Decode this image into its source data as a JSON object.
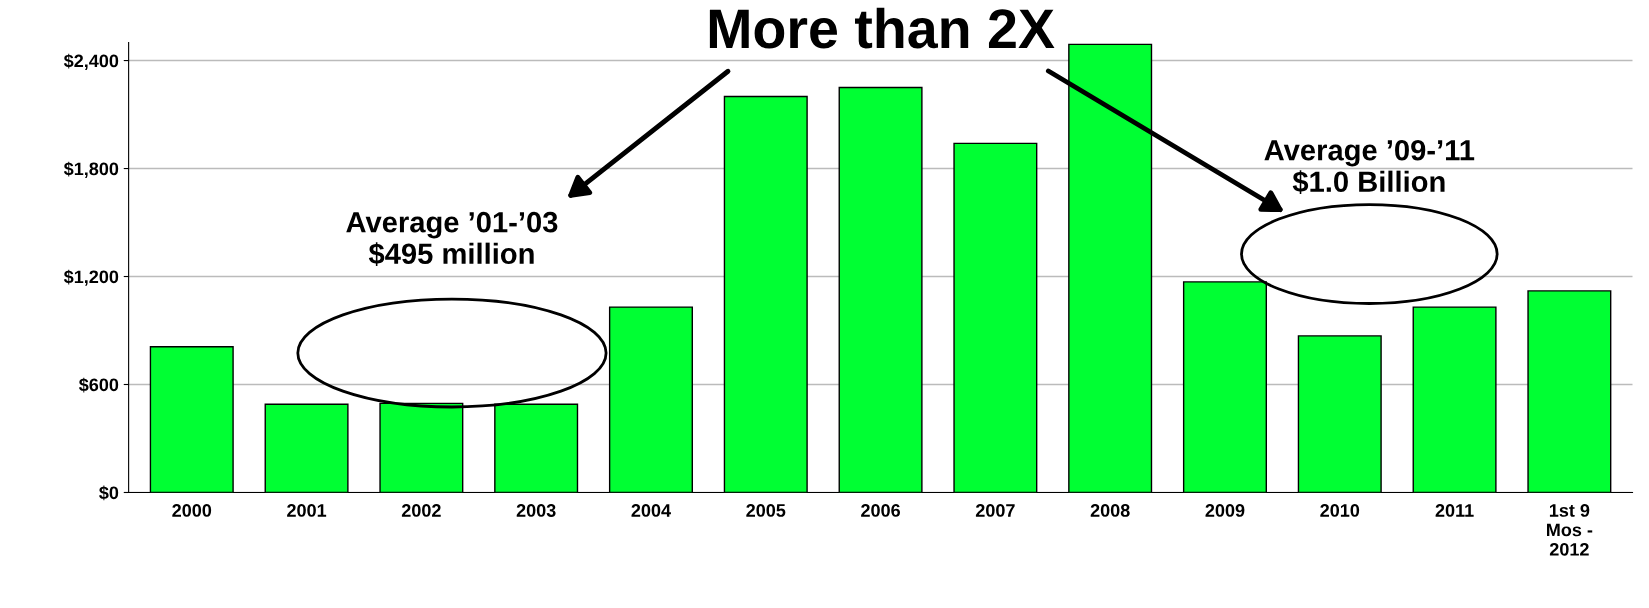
{
  "chart_data": {
    "type": "bar",
    "categories": [
      "2000",
      "2001",
      "2002",
      "2003",
      "2004",
      "2005",
      "2006",
      "2007",
      "2008",
      "2009",
      "2010",
      "2011",
      "1st 9\nMos -\n2012"
    ],
    "values": [
      810,
      490,
      495,
      490,
      1030,
      2200,
      2250,
      1940,
      2490,
      1170,
      870,
      1030,
      1120
    ],
    "color": "#00ff33",
    "ylim": [
      0,
      2500
    ],
    "yticks": [
      {
        "value": 0,
        "label": "$0"
      },
      {
        "value": 600,
        "label": "$600"
      },
      {
        "value": 1200,
        "label": "$1,200"
      },
      {
        "value": 1800,
        "label": "$1,800"
      },
      {
        "value": 2400,
        "label": "$2,400"
      }
    ],
    "grid": "y",
    "annotations": [
      "More than 2X",
      "Average ’01-’03\n$495 million",
      "Average ’09-’11\n$1.0 Billion"
    ]
  }
}
